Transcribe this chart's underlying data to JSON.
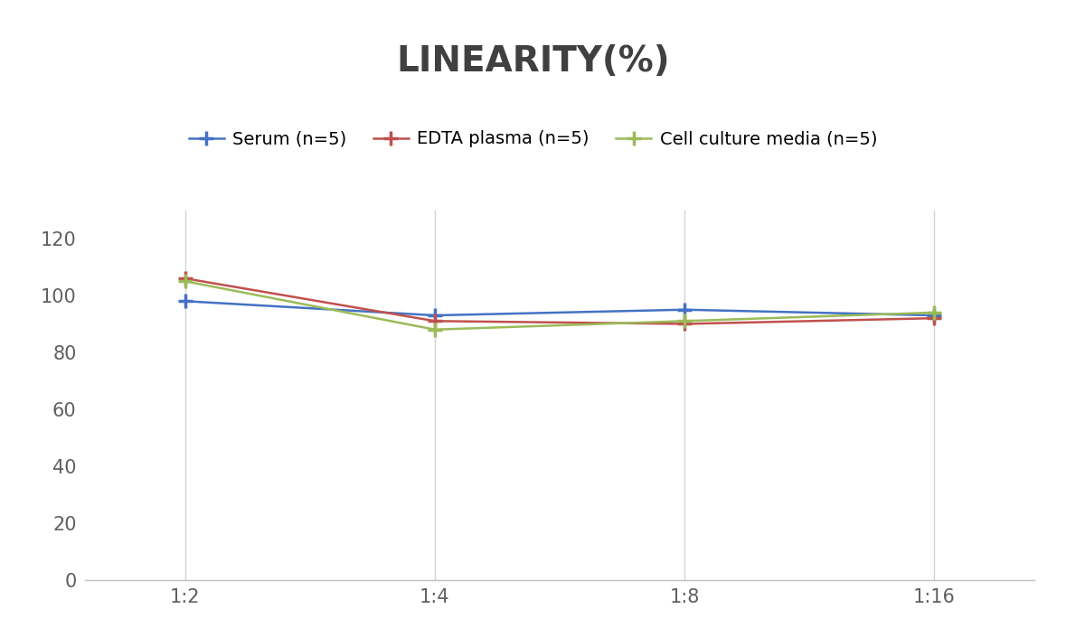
{
  "title": "LINEARITY(%)",
  "x_labels": [
    "1:2",
    "1:4",
    "1:8",
    "1:16"
  ],
  "series": [
    {
      "label": "Serum (n=5)",
      "color": "#4472C4",
      "marker": "P",
      "values": [
        98,
        93,
        95,
        93
      ]
    },
    {
      "label": "EDTA plasma (n=5)",
      "color": "#C0504D",
      "marker": "P",
      "values": [
        106,
        91,
        90,
        92
      ]
    },
    {
      "label": "Cell culture media (n=5)",
      "color": "#9BBB59",
      "marker": "P",
      "values": [
        105,
        88,
        91,
        94
      ]
    }
  ],
  "ylim": [
    0,
    130
  ],
  "yticks": [
    0,
    20,
    40,
    60,
    80,
    100,
    120
  ],
  "background_color": "#ffffff",
  "grid_color": "#d3d3d3",
  "title_fontsize": 28,
  "legend_fontsize": 14,
  "tick_fontsize": 15,
  "title_color": "#404040",
  "tick_color": "#606060"
}
